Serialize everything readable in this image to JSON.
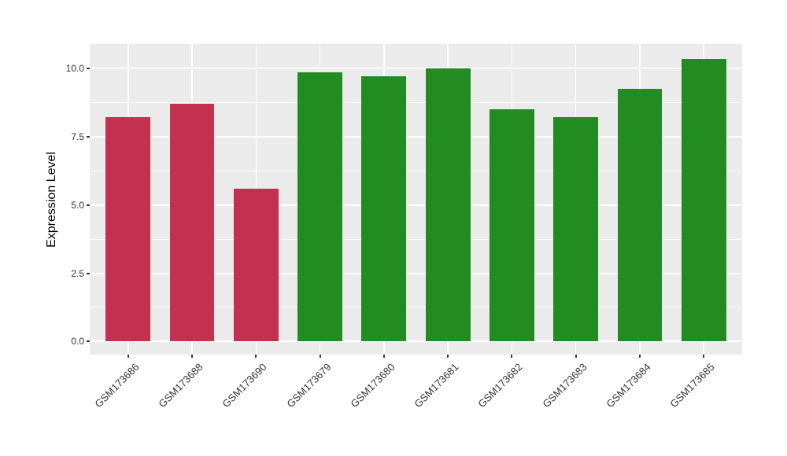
{
  "figure": {
    "background_color": "#FFFFFF",
    "panel_background_color": "#EBEBEB",
    "grid_color": "#FFFFFF",
    "tick_mark_color": "#333333",
    "tick_label_color": "#333333",
    "axis_title_color": "#000000",
    "red_bar_color": "#C3314E",
    "green_bar_color": "#228B22"
  },
  "chart_data": {
    "type": "bar",
    "title": "",
    "xlabel": "",
    "ylabel": "Expression Level",
    "categories": [
      "GSM173686",
      "GSM173688",
      "GSM173690",
      "GSM173679",
      "GSM173680",
      "GSM173681",
      "GSM173682",
      "GSM173683",
      "GSM173684",
      "GSM173685"
    ],
    "values": [
      8.23,
      8.7,
      5.6,
      9.87,
      9.73,
      10.0,
      8.52,
      8.21,
      9.26,
      10.34
    ],
    "bar_colors": [
      "#C3314E",
      "#C3314E",
      "#C3314E",
      "#228B22",
      "#228B22",
      "#228B22",
      "#228B22",
      "#228B22",
      "#228B22",
      "#228B22"
    ],
    "y_major_ticks": [
      0.0,
      2.5,
      5.0,
      7.5,
      10.0
    ],
    "y_tick_labels": [
      "0.0",
      "2.5",
      "5.0",
      "7.5",
      "10.0"
    ],
    "y_minor_ticks": [
      1.25,
      3.75,
      6.25,
      8.75
    ],
    "ylim": [
      -0.48,
      10.9
    ],
    "grid": true,
    "legend_position": "none",
    "bar_width_fraction": 0.7,
    "x_label_angle_degrees": 45
  }
}
